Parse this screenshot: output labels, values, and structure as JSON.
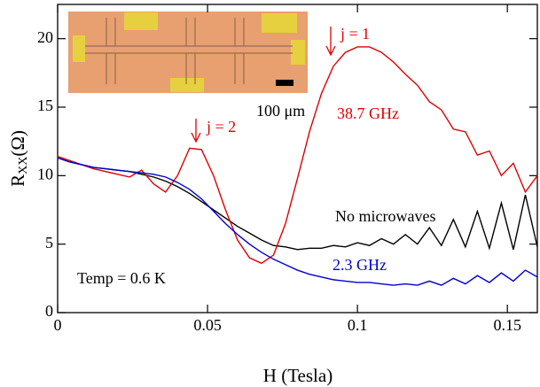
{
  "chart_data": {
    "type": "line",
    "xlabel": "H (Tesla)",
    "ylabel": {
      "main": "R",
      "sub": "XX",
      "unit": "(Ω)"
    },
    "xlim": [
      0,
      0.16
    ],
    "ylim": [
      0,
      22.5
    ],
    "xticks": [
      0,
      0.05,
      0.1,
      0.15
    ],
    "yticks": [
      0,
      5,
      10,
      15,
      20
    ],
    "annotations": {
      "j2": "j = 2",
      "j1": "j = 1",
      "scale": "100 μm",
      "red": "38.7 GHz",
      "black": "No microwaves",
      "blue": "2.3 GHz",
      "temp": "Temp = 0.6 K"
    },
    "x": [
      0,
      0.004,
      0.008,
      0.012,
      0.016,
      0.02,
      0.024,
      0.028,
      0.032,
      0.036,
      0.04,
      0.044,
      0.048,
      0.052,
      0.056,
      0.06,
      0.064,
      0.068,
      0.072,
      0.076,
      0.08,
      0.084,
      0.088,
      0.092,
      0.096,
      0.1,
      0.104,
      0.108,
      0.112,
      0.116,
      0.12,
      0.124,
      0.128,
      0.132,
      0.136,
      0.14,
      0.144,
      0.148,
      0.152,
      0.156,
      0.16
    ],
    "series": [
      {
        "name": "No microwaves",
        "color": "#000000",
        "values": [
          11.3,
          11.0,
          10.8,
          10.6,
          10.5,
          10.4,
          10.3,
          10.1,
          9.9,
          9.6,
          9.2,
          8.7,
          8.1,
          7.5,
          6.9,
          6.3,
          5.8,
          5.3,
          4.9,
          4.8,
          4.6,
          4.7,
          4.7,
          4.9,
          4.8,
          5.1,
          4.9,
          5.4,
          5.0,
          5.7,
          5.0,
          6.2,
          4.9,
          6.8,
          4.8,
          7.4,
          4.7,
          8.0,
          4.6,
          8.6,
          4.8
        ]
      },
      {
        "name": "38.7 GHz",
        "color": "#e00000",
        "values": [
          11.4,
          11.1,
          10.8,
          10.5,
          10.3,
          10.1,
          9.9,
          10.4,
          9.4,
          8.8,
          10.0,
          12.0,
          11.9,
          10.0,
          7.5,
          5.3,
          4.0,
          3.6,
          4.2,
          6.5,
          9.8,
          13.2,
          16.0,
          18.0,
          19.0,
          19.4,
          19.4,
          19.0,
          18.3,
          17.4,
          16.6,
          15.4,
          14.8,
          13.4,
          13.2,
          11.5,
          11.8,
          10.0,
          10.9,
          8.8,
          10.0
        ]
      },
      {
        "name": "2.3 GHz",
        "color": "#0000d0",
        "values": [
          11.3,
          11.0,
          10.8,
          10.6,
          10.5,
          10.4,
          10.3,
          10.2,
          10.1,
          9.9,
          9.5,
          9.0,
          8.3,
          7.4,
          6.5,
          5.7,
          5.0,
          4.4,
          3.9,
          3.5,
          3.1,
          2.8,
          2.6,
          2.4,
          2.3,
          2.2,
          2.2,
          2.1,
          2.0,
          2.1,
          2.0,
          2.3,
          2.0,
          2.5,
          2.1,
          2.7,
          2.2,
          2.9,
          2.3,
          3.1,
          2.6
        ]
      }
    ]
  }
}
